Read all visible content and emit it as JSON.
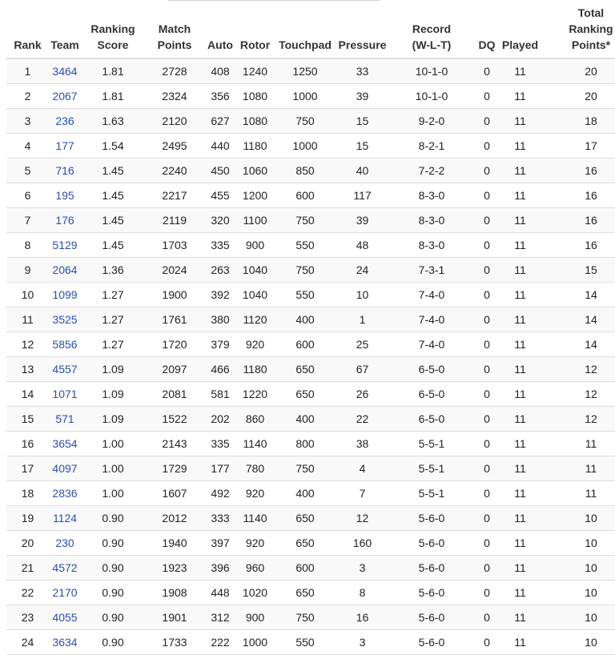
{
  "headers": {
    "rank": "Rank",
    "team": "Team",
    "ranking_score": [
      "Ranking",
      "Score"
    ],
    "match_points": [
      "Match",
      "Points"
    ],
    "auto": "Auto",
    "rotor": "Rotor",
    "touchpad": "Touchpad",
    "pressure": "Pressure",
    "record": [
      "Record",
      "(W-L-T)"
    ],
    "dq": "DQ",
    "played": "Played",
    "total_ranking_points": [
      "Total",
      "Ranking",
      "Points*"
    ]
  },
  "rows": [
    {
      "rank": "1",
      "team": "3464",
      "ranking_score": "1.81",
      "match_points": "2728",
      "auto": "408",
      "rotor": "1240",
      "touchpad": "1250",
      "pressure": "33",
      "record": "10-1-0",
      "dq": "0",
      "played": "11",
      "total_rp": "20"
    },
    {
      "rank": "2",
      "team": "2067",
      "ranking_score": "1.81",
      "match_points": "2324",
      "auto": "356",
      "rotor": "1080",
      "touchpad": "1000",
      "pressure": "39",
      "record": "10-1-0",
      "dq": "0",
      "played": "11",
      "total_rp": "20"
    },
    {
      "rank": "3",
      "team": "236",
      "ranking_score": "1.63",
      "match_points": "2120",
      "auto": "627",
      "rotor": "1080",
      "touchpad": "750",
      "pressure": "15",
      "record": "9-2-0",
      "dq": "0",
      "played": "11",
      "total_rp": "18"
    },
    {
      "rank": "4",
      "team": "177",
      "ranking_score": "1.54",
      "match_points": "2495",
      "auto": "440",
      "rotor": "1180",
      "touchpad": "1000",
      "pressure": "15",
      "record": "8-2-1",
      "dq": "0",
      "played": "11",
      "total_rp": "17"
    },
    {
      "rank": "5",
      "team": "716",
      "ranking_score": "1.45",
      "match_points": "2240",
      "auto": "450",
      "rotor": "1060",
      "touchpad": "850",
      "pressure": "40",
      "record": "7-2-2",
      "dq": "0",
      "played": "11",
      "total_rp": "16"
    },
    {
      "rank": "6",
      "team": "195",
      "ranking_score": "1.45",
      "match_points": "2217",
      "auto": "455",
      "rotor": "1200",
      "touchpad": "600",
      "pressure": "117",
      "record": "8-3-0",
      "dq": "0",
      "played": "11",
      "total_rp": "16"
    },
    {
      "rank": "7",
      "team": "176",
      "ranking_score": "1.45",
      "match_points": "2119",
      "auto": "320",
      "rotor": "1100",
      "touchpad": "750",
      "pressure": "39",
      "record": "8-3-0",
      "dq": "0",
      "played": "11",
      "total_rp": "16"
    },
    {
      "rank": "8",
      "team": "5129",
      "ranking_score": "1.45",
      "match_points": "1703",
      "auto": "335",
      "rotor": "900",
      "touchpad": "550",
      "pressure": "48",
      "record": "8-3-0",
      "dq": "0",
      "played": "11",
      "total_rp": "16"
    },
    {
      "rank": "9",
      "team": "2064",
      "ranking_score": "1.36",
      "match_points": "2024",
      "auto": "263",
      "rotor": "1040",
      "touchpad": "750",
      "pressure": "24",
      "record": "7-3-1",
      "dq": "0",
      "played": "11",
      "total_rp": "15"
    },
    {
      "rank": "10",
      "team": "1099",
      "ranking_score": "1.27",
      "match_points": "1900",
      "auto": "392",
      "rotor": "1040",
      "touchpad": "550",
      "pressure": "10",
      "record": "7-4-0",
      "dq": "0",
      "played": "11",
      "total_rp": "14"
    },
    {
      "rank": "11",
      "team": "3525",
      "ranking_score": "1.27",
      "match_points": "1761",
      "auto": "380",
      "rotor": "1120",
      "touchpad": "400",
      "pressure": "1",
      "record": "7-4-0",
      "dq": "0",
      "played": "11",
      "total_rp": "14"
    },
    {
      "rank": "12",
      "team": "5856",
      "ranking_score": "1.27",
      "match_points": "1720",
      "auto": "379",
      "rotor": "920",
      "touchpad": "600",
      "pressure": "25",
      "record": "7-4-0",
      "dq": "0",
      "played": "11",
      "total_rp": "14"
    },
    {
      "rank": "13",
      "team": "4557",
      "ranking_score": "1.09",
      "match_points": "2097",
      "auto": "466",
      "rotor": "1180",
      "touchpad": "650",
      "pressure": "67",
      "record": "6-5-0",
      "dq": "0",
      "played": "11",
      "total_rp": "12"
    },
    {
      "rank": "14",
      "team": "1071",
      "ranking_score": "1.09",
      "match_points": "2081",
      "auto": "581",
      "rotor": "1220",
      "touchpad": "650",
      "pressure": "26",
      "record": "6-5-0",
      "dq": "0",
      "played": "11",
      "total_rp": "12"
    },
    {
      "rank": "15",
      "team": "571",
      "ranking_score": "1.09",
      "match_points": "1522",
      "auto": "202",
      "rotor": "860",
      "touchpad": "400",
      "pressure": "22",
      "record": "6-5-0",
      "dq": "0",
      "played": "11",
      "total_rp": "12"
    },
    {
      "rank": "16",
      "team": "3654",
      "ranking_score": "1.00",
      "match_points": "2143",
      "auto": "335",
      "rotor": "1140",
      "touchpad": "800",
      "pressure": "38",
      "record": "5-5-1",
      "dq": "0",
      "played": "11",
      "total_rp": "11"
    },
    {
      "rank": "17",
      "team": "4097",
      "ranking_score": "1.00",
      "match_points": "1729",
      "auto": "177",
      "rotor": "780",
      "touchpad": "750",
      "pressure": "4",
      "record": "5-5-1",
      "dq": "0",
      "played": "11",
      "total_rp": "11"
    },
    {
      "rank": "18",
      "team": "2836",
      "ranking_score": "1.00",
      "match_points": "1607",
      "auto": "492",
      "rotor": "920",
      "touchpad": "400",
      "pressure": "7",
      "record": "5-5-1",
      "dq": "0",
      "played": "11",
      "total_rp": "11"
    },
    {
      "rank": "19",
      "team": "1124",
      "ranking_score": "0.90",
      "match_points": "2012",
      "auto": "333",
      "rotor": "1140",
      "touchpad": "650",
      "pressure": "12",
      "record": "5-6-0",
      "dq": "0",
      "played": "11",
      "total_rp": "10"
    },
    {
      "rank": "20",
      "team": "230",
      "ranking_score": "0.90",
      "match_points": "1940",
      "auto": "397",
      "rotor": "920",
      "touchpad": "650",
      "pressure": "160",
      "record": "5-6-0",
      "dq": "0",
      "played": "11",
      "total_rp": "10"
    },
    {
      "rank": "21",
      "team": "4572",
      "ranking_score": "0.90",
      "match_points": "1923",
      "auto": "396",
      "rotor": "960",
      "touchpad": "600",
      "pressure": "3",
      "record": "5-6-0",
      "dq": "0",
      "played": "11",
      "total_rp": "10"
    },
    {
      "rank": "22",
      "team": "2170",
      "ranking_score": "0.90",
      "match_points": "1908",
      "auto": "448",
      "rotor": "1020",
      "touchpad": "650",
      "pressure": "8",
      "record": "5-6-0",
      "dq": "0",
      "played": "11",
      "total_rp": "10"
    },
    {
      "rank": "23",
      "team": "4055",
      "ranking_score": "0.90",
      "match_points": "1901",
      "auto": "312",
      "rotor": "900",
      "touchpad": "750",
      "pressure": "16",
      "record": "5-6-0",
      "dq": "0",
      "played": "11",
      "total_rp": "10"
    },
    {
      "rank": "24",
      "team": "3634",
      "ranking_score": "0.90",
      "match_points": "1733",
      "auto": "222",
      "rotor": "1000",
      "touchpad": "550",
      "pressure": "3",
      "record": "5-6-0",
      "dq": "0",
      "played": "11",
      "total_rp": "10"
    }
  ],
  "colors": {
    "link": "#2a4fb0",
    "stripe": "#f9f9f9",
    "border": "#dddddd"
  }
}
